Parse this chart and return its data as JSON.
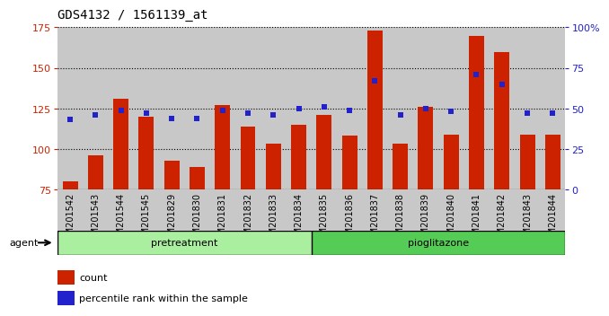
{
  "title": "GDS4132 / 1561139_at",
  "samples": [
    "GSM201542",
    "GSM201543",
    "GSM201544",
    "GSM201545",
    "GSM201829",
    "GSM201830",
    "GSM201831",
    "GSM201832",
    "GSM201833",
    "GSM201834",
    "GSM201835",
    "GSM201836",
    "GSM201837",
    "GSM201838",
    "GSM201839",
    "GSM201840",
    "GSM201841",
    "GSM201842",
    "GSM201843",
    "GSM201844"
  ],
  "counts": [
    80,
    96,
    131,
    120,
    93,
    89,
    127,
    114,
    103,
    115,
    121,
    108,
    173,
    103,
    126,
    109,
    170,
    160,
    109,
    109
  ],
  "percentiles": [
    43,
    46,
    49,
    47,
    44,
    44,
    49,
    47,
    46,
    50,
    51,
    49,
    67,
    46,
    50,
    48,
    71,
    65,
    47,
    47
  ],
  "pretreatment_count": 10,
  "pioglitazone_count": 10,
  "ylim_left": [
    75,
    175
  ],
  "ylim_right": [
    0,
    100
  ],
  "yticks_left": [
    75,
    100,
    125,
    150,
    175
  ],
  "yticks_right": [
    0,
    25,
    50,
    75,
    100
  ],
  "ytick_labels_right": [
    "0",
    "25",
    "50",
    "75",
    "100%"
  ],
  "bar_color": "#cc2200",
  "dot_color": "#2222cc",
  "bg_color": "#c8c8c8",
  "pretreat_color": "#aaeea0",
  "pioglit_color": "#55cc55",
  "agent_label": "agent",
  "pretreatment_label": "pretreatment",
  "pioglitazone_label": "pioglitazone",
  "legend_count_label": "count",
  "legend_pct_label": "percentile rank within the sample",
  "title_fontsize": 10,
  "tick_fontsize": 7,
  "bar_width": 0.6
}
